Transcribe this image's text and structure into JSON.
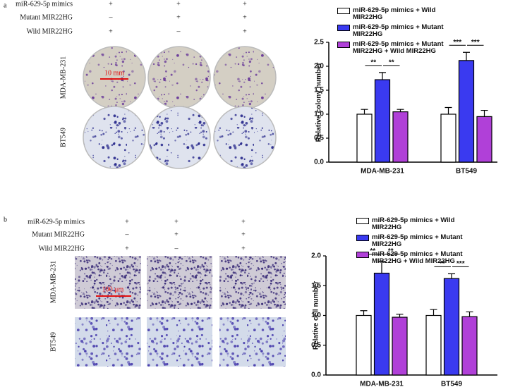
{
  "panels": [
    {
      "label": "a",
      "conditions": [
        {
          "name": "miR-629-5p mimics",
          "marks": [
            "+",
            "+",
            "+"
          ]
        },
        {
          "name": "Mutant MIR22HG",
          "marks": [
            "–",
            "+",
            "+"
          ]
        },
        {
          "name": "Wild MIR22HG",
          "marks": [
            "+",
            "–",
            "+"
          ]
        }
      ],
      "image_rows": [
        "MDA-MB-231",
        "BT549"
      ],
      "scale_bar": "10 mm"
    },
    {
      "label": "b",
      "conditions": [
        {
          "name": "miR-629-5p mimics",
          "marks": [
            "+",
            "+",
            "+"
          ]
        },
        {
          "name": "Mutant MIR22HG",
          "marks": [
            "–",
            "+",
            "+"
          ]
        },
        {
          "name": "Wild MIR22HG",
          "marks": [
            "+",
            "–",
            "+"
          ]
        }
      ],
      "image_rows": [
        "MDA-MB-231",
        "BT549"
      ],
      "scale_bar": "100 μm"
    }
  ],
  "chart_data": [
    {
      "type": "bar",
      "y_label": "Relative colony number",
      "categories": [
        "MDA-MB-231",
        "BT549"
      ],
      "series": [
        {
          "name": "miR-629-5p mimics + Wild MIR22HG",
          "color": "#ffffff",
          "values": [
            1.0,
            1.0
          ],
          "errors": [
            0.1,
            0.14
          ]
        },
        {
          "name": "miR-629-5p mimics + Mutant MIR22HG",
          "color": "#3a3af0",
          "values": [
            1.72,
            2.12
          ],
          "errors": [
            0.15,
            0.17
          ]
        },
        {
          "name": "miR-629-5p mimics + Mutant MIR22HG + Wild MIR22HG",
          "color": "#b040d8",
          "values": [
            1.05,
            0.95
          ],
          "errors": [
            0.05,
            0.13
          ]
        }
      ],
      "significance": [
        [
          "**",
          "**"
        ],
        [
          "***",
          "***"
        ]
      ],
      "ylim": [
        0,
        2.5
      ],
      "yticks": [
        {
          "value": 0,
          "label": "0.0"
        },
        0.5,
        {
          "value": 1,
          "label": "1.0"
        },
        1.5,
        {
          "value": 2,
          "label": "2.0"
        },
        2.5
      ]
    },
    {
      "type": "bar",
      "y_label": "Relative cell number",
      "categories": [
        "MDA-MB-231",
        "BT549"
      ],
      "series": [
        {
          "name": "miR-629-5p mimics + Wild MIR22HG",
          "color": "#ffffff",
          "values": [
            1.0,
            1.0
          ],
          "errors": [
            0.08,
            0.1
          ]
        },
        {
          "name": "miR-629-5p mimics + Mutant MIR22HG",
          "color": "#3a3af0",
          "values": [
            1.71,
            1.62
          ],
          "errors": [
            0.2,
            0.08
          ]
        },
        {
          "name": "miR-629-5p mimics + Mutant MIR22HG + Wild MIR22HG",
          "color": "#b040d8",
          "values": [
            0.97,
            0.98
          ],
          "errors": [
            0.05,
            0.08
          ]
        }
      ],
      "significance": [
        [
          "**",
          "**"
        ],
        [
          "**",
          "***"
        ]
      ],
      "ylim": [
        0,
        2
      ],
      "yticks": [
        {
          "value": 0,
          "label": "0.0"
        },
        0.5,
        {
          "value": 1,
          "label": "1.0"
        },
        1.5,
        {
          "value": 2,
          "label": "2.0"
        }
      ]
    }
  ]
}
